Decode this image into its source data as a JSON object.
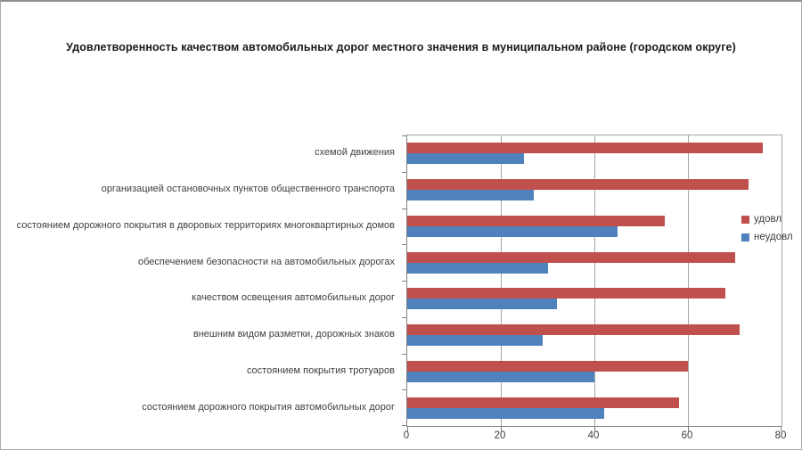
{
  "window": {
    "background": "#FFFFFF",
    "frame_border_color": "#ABABAB"
  },
  "chart_data": {
    "type": "bar",
    "orientation": "horizontal",
    "title": "Удовлетворенность качеством автомобильных дорог местного значения в муниципальном районе (городском округе)",
    "categories": [
      "схемой движения",
      "организацией остановочных пунктов общественного транспорта",
      "состоянием дорожного покрытия в дворовых территориях многоквартирных домов",
      "обеспечением безопасности на автомобильных дорогах",
      "качеством освещения автомобильных дорог",
      "внешним видом разметки, дорожных знаков",
      "состоянием покрытия тротуаров",
      "состоянием дорожного покрытия автомобильных дорог"
    ],
    "series": [
      {
        "name": "удовл",
        "color": "#C0504D",
        "values": [
          76,
          73,
          55,
          70,
          68,
          71,
          60,
          58
        ]
      },
      {
        "name": "неудовл",
        "color": "#4F81BD",
        "values": [
          25,
          27,
          45,
          30,
          32,
          29,
          40,
          42
        ]
      }
    ],
    "xlim": [
      0,
      80
    ],
    "x_ticks": [
      0,
      20,
      40,
      60,
      80
    ],
    "grid": true,
    "legend_position": "right-overlap",
    "axis_color": "#808080",
    "gridline_color": "#A6A6A6"
  }
}
